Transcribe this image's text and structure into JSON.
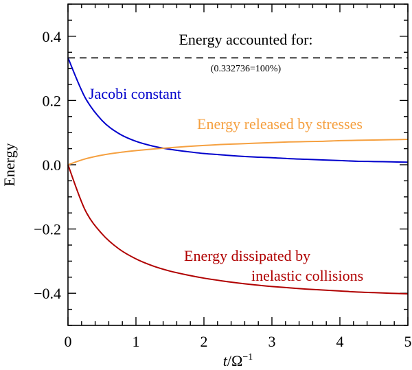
{
  "chart_data": {
    "type": "line",
    "title": "",
    "xlabel": "t/Ω",
    "xlabel_parts": {
      "var": "t",
      "rest": "/Ω",
      "sup": "−1"
    },
    "ylabel": "Energy",
    "xlim": [
      0,
      5
    ],
    "ylim": [
      -0.5,
      0.5
    ],
    "xticks": [
      0,
      1,
      2,
      3,
      4,
      5
    ],
    "xtick_labels": [
      "0",
      "1",
      "2",
      "3",
      "4",
      "5"
    ],
    "yticks": [
      -0.4,
      -0.2,
      0.0,
      0.2,
      0.4
    ],
    "ytick_labels": [
      "−0.4",
      "−0.2",
      "0.0",
      "0.2",
      "0.4"
    ],
    "x": [
      0,
      0.25,
      0.5,
      0.75,
      1,
      1.25,
      1.5,
      1.75,
      2,
      2.25,
      2.5,
      2.75,
      3,
      3.25,
      3.5,
      3.75,
      4,
      4.25,
      4.5,
      4.75,
      5
    ],
    "series": [
      {
        "name": "Jacobi constant",
        "color": "#0000cc",
        "values": [
          0.333,
          0.21,
          0.138,
          0.097,
          0.073,
          0.058,
          0.048,
          0.041,
          0.035,
          0.031,
          0.027,
          0.024,
          0.022,
          0.019,
          0.017,
          0.015,
          0.013,
          0.011,
          0.01,
          0.009,
          0.008
        ]
      },
      {
        "name": "Energy released by stresses",
        "color": "#f5a040",
        "values": [
          0.0,
          0.018,
          0.03,
          0.038,
          0.044,
          0.049,
          0.053,
          0.057,
          0.06,
          0.063,
          0.065,
          0.067,
          0.069,
          0.071,
          0.072,
          0.073,
          0.075,
          0.076,
          0.077,
          0.078,
          0.079
        ]
      },
      {
        "name": "Energy dissipated by inelastic collisions",
        "color": "#b00000",
        "values": [
          0.0,
          -0.14,
          -0.215,
          -0.262,
          -0.293,
          -0.315,
          -0.331,
          -0.343,
          -0.353,
          -0.361,
          -0.368,
          -0.374,
          -0.379,
          -0.383,
          -0.387,
          -0.39,
          -0.393,
          -0.396,
          -0.398,
          -0.4,
          -0.402
        ]
      }
    ],
    "reference_line": {
      "y": 0.332736,
      "style": "dashed",
      "color": "#000000"
    },
    "annotations": {
      "accounted_title": "Energy accounted for:",
      "accounted_value": "(0.332736=100%)",
      "jacobi": "Jacobi constant",
      "stresses": "Energy released by stresses",
      "dissipated_line1": "Energy dissipated by",
      "dissipated_line2": "inelastic collisions"
    }
  }
}
